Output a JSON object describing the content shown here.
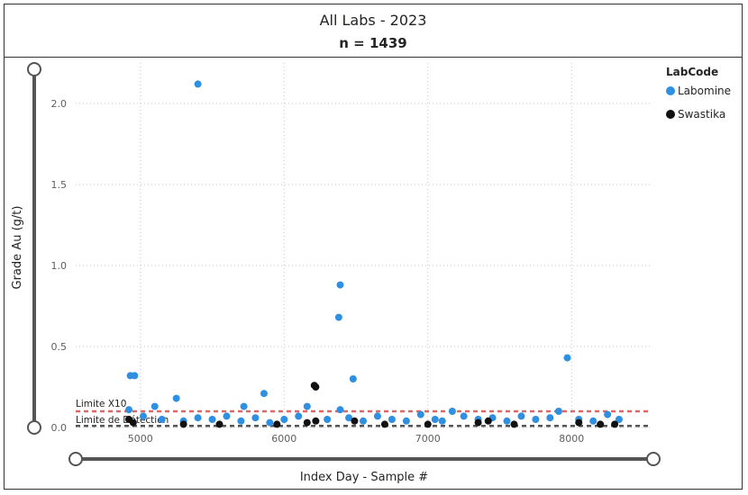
{
  "header": {
    "title": "All Labs - 2023",
    "subtitle": "n = 1439"
  },
  "legend": {
    "title": "LabCode",
    "items": [
      {
        "label": "Labomine",
        "color": "#2f8fe0"
      },
      {
        "label": "Swastika",
        "color": "#111111"
      }
    ]
  },
  "reference_lines": [
    {
      "label": "Limite X10",
      "value": 0.1,
      "color": "#e06666"
    },
    {
      "label": "Limite de Détection",
      "value": 0.01,
      "color": "#555555"
    }
  ],
  "chart_data": {
    "type": "scatter",
    "title": "All Labs - 2023",
    "subtitle": "n = 1439",
    "xlabel": "Index Day - Sample #",
    "ylabel": "Grade Au (g/t)",
    "xlim": [
      4550,
      8550
    ],
    "ylim": [
      0,
      2.25
    ],
    "xticks": [
      5000,
      6000,
      7000,
      8000
    ],
    "yticks": [
      "0.0",
      "0.5",
      "1.0",
      "1.5",
      "2.0"
    ],
    "ytick_values": [
      0,
      0.5,
      1.0,
      1.5,
      2.0
    ],
    "grid": true,
    "legend_position": "top-right",
    "series": [
      {
        "name": "Labomine",
        "color": "#2f8fe0",
        "points": [
          [
            5400,
            2.12
          ],
          [
            6390,
            0.88
          ],
          [
            6380,
            0.68
          ],
          [
            7970,
            0.43
          ],
          [
            4930,
            0.32
          ],
          [
            4960,
            0.32
          ],
          [
            6480,
            0.3
          ],
          [
            5860,
            0.21
          ],
          [
            5250,
            0.18
          ],
          [
            5100,
            0.13
          ],
          [
            5720,
            0.13
          ],
          [
            6160,
            0.13
          ],
          [
            4920,
            0.11
          ],
          [
            6390,
            0.11
          ],
          [
            7170,
            0.1
          ],
          [
            7910,
            0.1
          ],
          [
            5020,
            0.07
          ],
          [
            5150,
            0.05
          ],
          [
            5300,
            0.04
          ],
          [
            5400,
            0.06
          ],
          [
            5500,
            0.05
          ],
          [
            5600,
            0.07
          ],
          [
            5700,
            0.04
          ],
          [
            5800,
            0.06
          ],
          [
            5900,
            0.03
          ],
          [
            6000,
            0.05
          ],
          [
            6100,
            0.07
          ],
          [
            6300,
            0.05
          ],
          [
            6450,
            0.06
          ],
          [
            6550,
            0.04
          ],
          [
            6650,
            0.07
          ],
          [
            6750,
            0.05
          ],
          [
            6850,
            0.04
          ],
          [
            6950,
            0.08
          ],
          [
            7050,
            0.05
          ],
          [
            7100,
            0.04
          ],
          [
            7250,
            0.07
          ],
          [
            7350,
            0.05
          ],
          [
            7450,
            0.06
          ],
          [
            7550,
            0.04
          ],
          [
            7650,
            0.07
          ],
          [
            7750,
            0.05
          ],
          [
            7850,
            0.06
          ],
          [
            8050,
            0.05
          ],
          [
            8150,
            0.04
          ],
          [
            8250,
            0.08
          ],
          [
            8330,
            0.05
          ]
        ]
      },
      {
        "name": "Swastika",
        "color": "#111111",
        "points": [
          [
            6210,
            0.26
          ],
          [
            6220,
            0.25
          ],
          [
            4920,
            0.05
          ],
          [
            4950,
            0.03
          ],
          [
            6220,
            0.04
          ],
          [
            6160,
            0.03
          ],
          [
            6490,
            0.04
          ],
          [
            7350,
            0.03
          ],
          [
            7420,
            0.04
          ],
          [
            7600,
            0.02
          ],
          [
            8050,
            0.03
          ],
          [
            8200,
            0.02
          ],
          [
            8300,
            0.02
          ],
          [
            5300,
            0.02
          ],
          [
            5550,
            0.02
          ],
          [
            5950,
            0.02
          ],
          [
            6700,
            0.02
          ],
          [
            7000,
            0.02
          ]
        ]
      }
    ]
  }
}
